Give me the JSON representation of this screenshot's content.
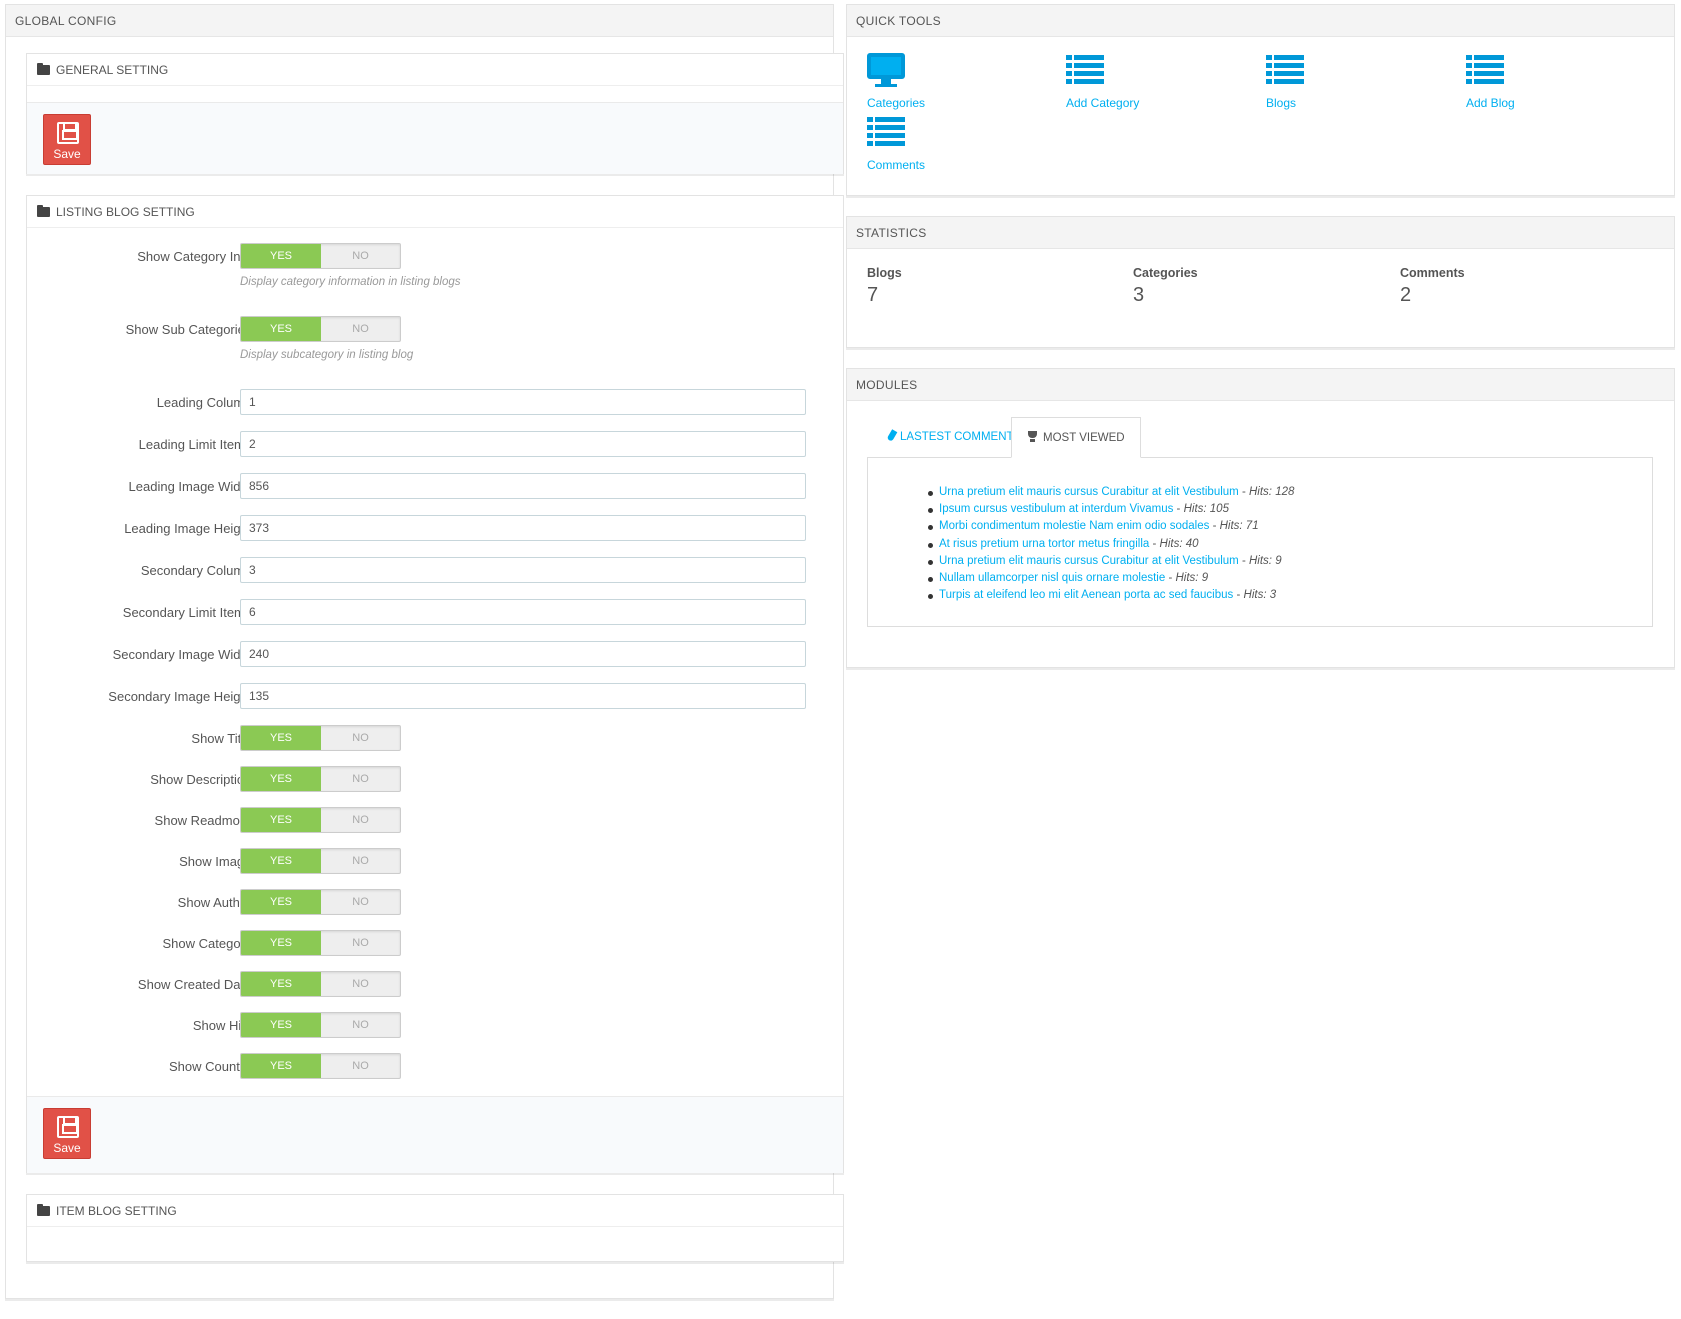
{
  "global_config": {
    "title": "GLOBAL CONFIG",
    "general_setting": {
      "title": "GENERAL SETTING",
      "save_label": "Save"
    },
    "listing_blog_setting": {
      "title": "LISTING BLOG SETTING",
      "save_label": "Save",
      "toggles_top": [
        {
          "label": "Show Category Info:",
          "yes": "YES",
          "no": "NO",
          "value": "yes",
          "help": "Display category information in listing blogs"
        },
        {
          "label": "Show Sub Categories:",
          "yes": "YES",
          "no": "NO",
          "value": "yes",
          "help": "Display subcategory in listing blog"
        }
      ],
      "fields": [
        {
          "label": "Leading Column:",
          "value": "1"
        },
        {
          "label": "Leading Limit Items:",
          "value": "2"
        },
        {
          "label": "Leading Image Width:",
          "value": "856"
        },
        {
          "label": "Leading Image Height:",
          "value": "373"
        },
        {
          "label": "Secondary Column:",
          "value": "3"
        },
        {
          "label": "Secondary Limit Items:",
          "value": "6"
        },
        {
          "label": "Secondary Image Width:",
          "value": "240"
        },
        {
          "label": "Secondary Image Height:",
          "value": "135"
        }
      ],
      "toggles_bottom": [
        {
          "label": "Show Title:",
          "yes": "YES",
          "no": "NO",
          "value": "yes"
        },
        {
          "label": "Show Description:",
          "yes": "YES",
          "no": "NO",
          "value": "yes"
        },
        {
          "label": "Show Readmore:",
          "yes": "YES",
          "no": "NO",
          "value": "yes"
        },
        {
          "label": "Show Image:",
          "yes": "YES",
          "no": "NO",
          "value": "yes"
        },
        {
          "label": "Show Author:",
          "yes": "YES",
          "no": "NO",
          "value": "yes"
        },
        {
          "label": "Show Category:",
          "yes": "YES",
          "no": "NO",
          "value": "yes"
        },
        {
          "label": "Show Created Date:",
          "yes": "YES",
          "no": "NO",
          "value": "yes"
        },
        {
          "label": "Show Hits:",
          "yes": "YES",
          "no": "NO",
          "value": "yes"
        },
        {
          "label": "Show Counter:",
          "yes": "YES",
          "no": "NO",
          "value": "yes"
        }
      ]
    },
    "item_blog_setting": {
      "title": "ITEM BLOG SETTING"
    }
  },
  "quick_tools": {
    "title": "QUICK TOOLS",
    "items": [
      {
        "label": "Categories",
        "icon": "monitor-icon"
      },
      {
        "label": "Add Category",
        "icon": "list-icon"
      },
      {
        "label": "Blogs",
        "icon": "list-icon"
      },
      {
        "label": "Add Blog",
        "icon": "list-icon"
      },
      {
        "label": "Comments",
        "icon": "list-icon"
      }
    ]
  },
  "statistics": {
    "title": "STATISTICS",
    "items": [
      {
        "label": "Blogs",
        "value": "7"
      },
      {
        "label": "Categories",
        "value": "3"
      },
      {
        "label": "Comments",
        "value": "2"
      }
    ]
  },
  "modules": {
    "title": "MODULES",
    "tabs": [
      {
        "label": "LASTEST COMMENTS",
        "icon": "pencil-icon",
        "active": false
      },
      {
        "label": "MOST VIEWED",
        "icon": "trophy-icon",
        "active": true
      }
    ],
    "most_viewed": [
      {
        "title": "Urna pretium elit mauris cursus Curabitur at elit Vestibulum",
        "sep": " - ",
        "hits": "Hits: 128"
      },
      {
        "title": "Ipsum cursus vestibulum at interdum Vivamus",
        "sep": " - ",
        "hits": "Hits: 105"
      },
      {
        "title": "Morbi condimentum molestie Nam enim odio sodales",
        "sep": " - ",
        "hits": "Hits: 71"
      },
      {
        "title": "At risus pretium urna tortor metus fringilla",
        "sep": " - ",
        "hits": "Hits: 40"
      },
      {
        "title": "Urna pretium elit mauris cursus Curabitur at elit Vestibulum",
        "sep": " - ",
        "hits": "Hits: 9"
      },
      {
        "title": "Nullam ullamcorper nisl quis ornare molestie",
        "sep": " - ",
        "hits": "Hits: 9"
      },
      {
        "title": "Turpis at eleifend leo mi elit Aenean porta ac sed faucibus",
        "sep": " - ",
        "hits": "Hits: 3"
      }
    ]
  },
  "colors": {
    "accent": "#00aff0",
    "toggle_on": "#8bc954",
    "save": "#e15147"
  }
}
